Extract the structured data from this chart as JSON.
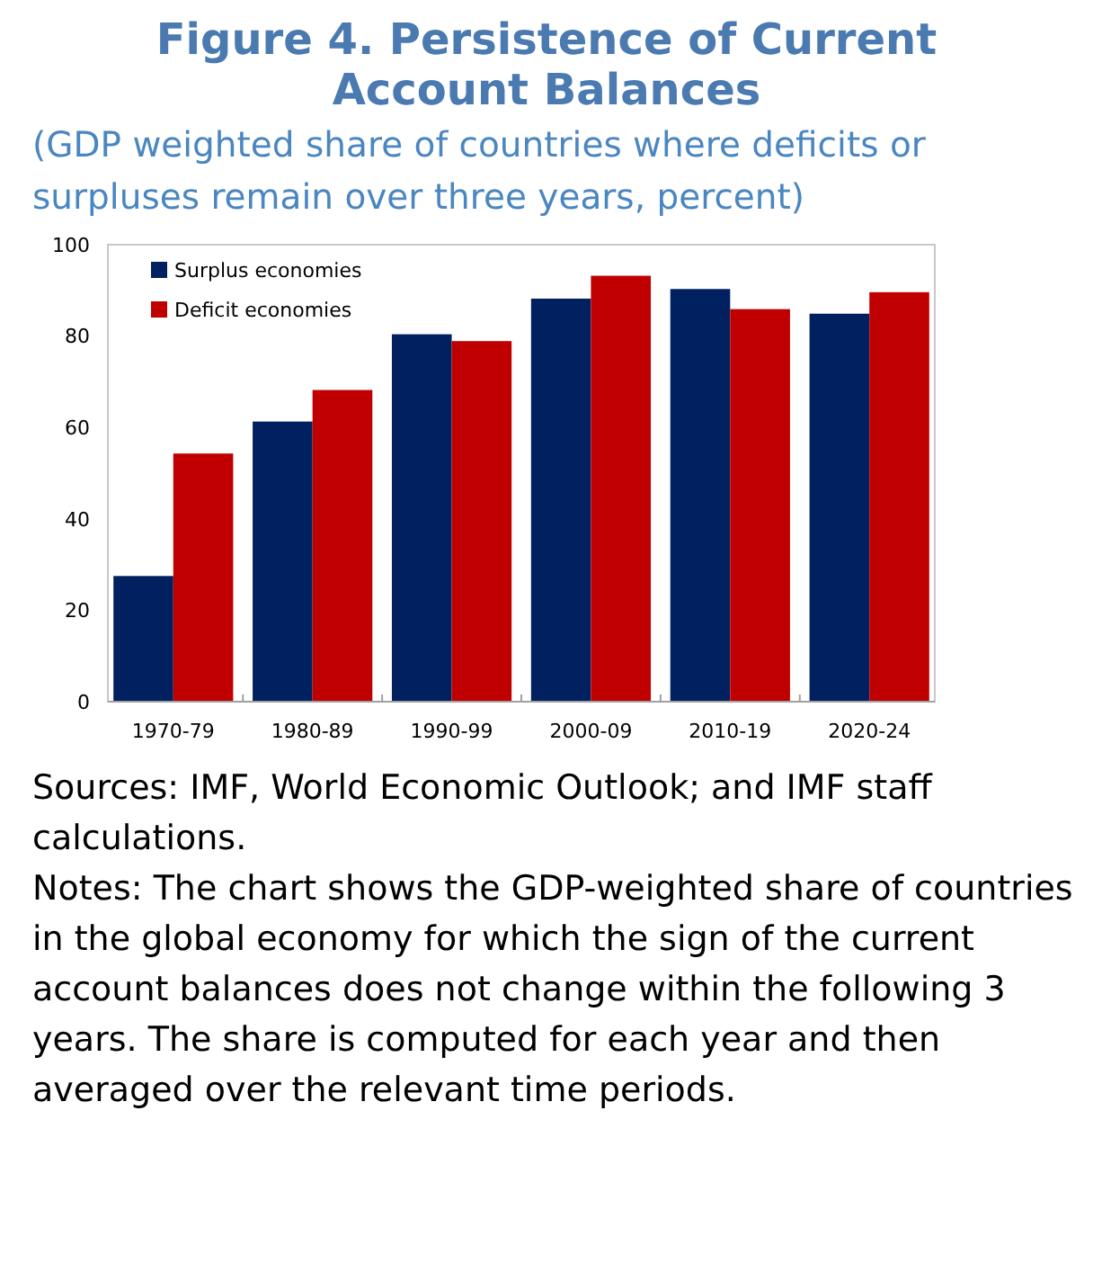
{
  "chart_data": {
    "type": "bar",
    "title": "Figure 4. Persistence of Current Account Balances",
    "subtitle": "(GDP weighted share of countries where deficits or surpluses remain over three years, percent)",
    "categories": [
      "1970-79",
      "1980-89",
      "1990-99",
      "2000-09",
      "2010-19",
      "2020-24"
    ],
    "series": [
      {
        "name": "Surplus economies",
        "color": "#002060",
        "values": [
          27.5,
          61.3,
          80.4,
          88.2,
          90.3,
          84.9
        ]
      },
      {
        "name": "Deficit economies",
        "color": "#c00000",
        "values": [
          54.3,
          68.2,
          78.9,
          93.2,
          85.9,
          89.6
        ]
      }
    ],
    "ylim": [
      0,
      100
    ],
    "yticks": [
      0,
      20,
      40,
      60,
      80,
      100
    ],
    "grid": false,
    "legend": "top left",
    "annotations": [
      "Sources: IMF, World Economic Outlook; and IMF staff calculations.",
      "Notes: The chart shows the GDP-weighted share of countries in the global economy for which the sign of the current account balances does not change within the following 3 years. The share is computed for each year and then averaged over the relevant time periods."
    ]
  }
}
